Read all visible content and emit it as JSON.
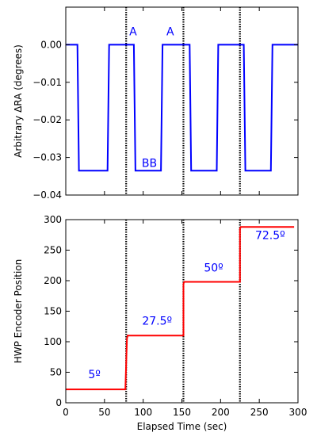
{
  "chart_data": [
    {
      "type": "line",
      "ylabel": "Arbitrary ΔRA (degrees)",
      "xlabel": "",
      "xlim": [
        0,
        300
      ],
      "ylim": [
        -0.04,
        0.01
      ],
      "xticks": [
        0,
        50,
        100,
        150,
        200,
        250,
        300
      ],
      "show_x_tick_labels": false,
      "yticks": [
        0.0,
        -0.01,
        -0.02,
        -0.03,
        -0.04
      ],
      "ytick_labels": [
        "0.00",
        "−0.01",
        "−0.02",
        "−0.03",
        "−0.04"
      ],
      "grid": false,
      "series": [
        {
          "color": "#0000ff",
          "x": [
            0,
            15,
            17,
            54,
            56,
            88,
            90,
            123,
            125,
            160,
            162,
            195,
            197,
            230,
            232,
            265,
            267,
            288,
            290,
            300
          ],
          "y": [
            0.0,
            0.0,
            -0.0335,
            -0.0335,
            0.0,
            0.0,
            -0.0335,
            -0.0335,
            0.0,
            0.0,
            -0.0335,
            -0.0335,
            0.0,
            0.0,
            -0.0335,
            -0.0335,
            0.0,
            0.0,
            0.0,
            0.0
          ]
        }
      ],
      "vlines": [
        78,
        152,
        225
      ],
      "annotations": [
        {
          "text": "A",
          "x": 87,
          "y": 0.0025,
          "color": "#0000ff"
        },
        {
          "text": "A",
          "x": 135,
          "y": 0.0025,
          "color": "#0000ff"
        },
        {
          "text": "BB",
          "x": 108,
          "y": -0.0325,
          "color": "#0000ff"
        }
      ]
    },
    {
      "type": "line",
      "ylabel": "HWP Encoder Position",
      "xlabel": "Elapsed Time (sec)",
      "xlim": [
        0,
        300
      ],
      "ylim": [
        0,
        300
      ],
      "xticks": [
        0,
        50,
        100,
        150,
        200,
        250,
        300
      ],
      "xtick_labels": [
        "0",
        "50",
        "100",
        "150",
        "200",
        "250",
        "300"
      ],
      "yticks": [
        0,
        50,
        100,
        150,
        200,
        250,
        300
      ],
      "ytick_labels": [
        "0",
        "50",
        "100",
        "150",
        "200",
        "250",
        "300"
      ],
      "grid": false,
      "series": [
        {
          "color": "#ff0000",
          "x": [
            0,
            77,
            79,
            80,
            152,
            152,
            153,
            225,
            225,
            226,
            295
          ],
          "y": [
            22,
            22,
            105,
            110,
            110,
            195,
            198,
            198,
            285,
            288,
            288
          ]
        }
      ],
      "vlines": [
        78,
        152,
        225
      ],
      "annotations": [
        {
          "text": "5º",
          "x": 37,
          "y": 40,
          "color": "#0000ff"
        },
        {
          "text": "27.5º",
          "x": 118,
          "y": 128,
          "color": "#0000ff"
        },
        {
          "text": "50º",
          "x": 191,
          "y": 215,
          "color": "#0000ff"
        },
        {
          "text": "72.5º",
          "x": 264,
          "y": 268,
          "color": "#0000ff"
        }
      ]
    }
  ]
}
